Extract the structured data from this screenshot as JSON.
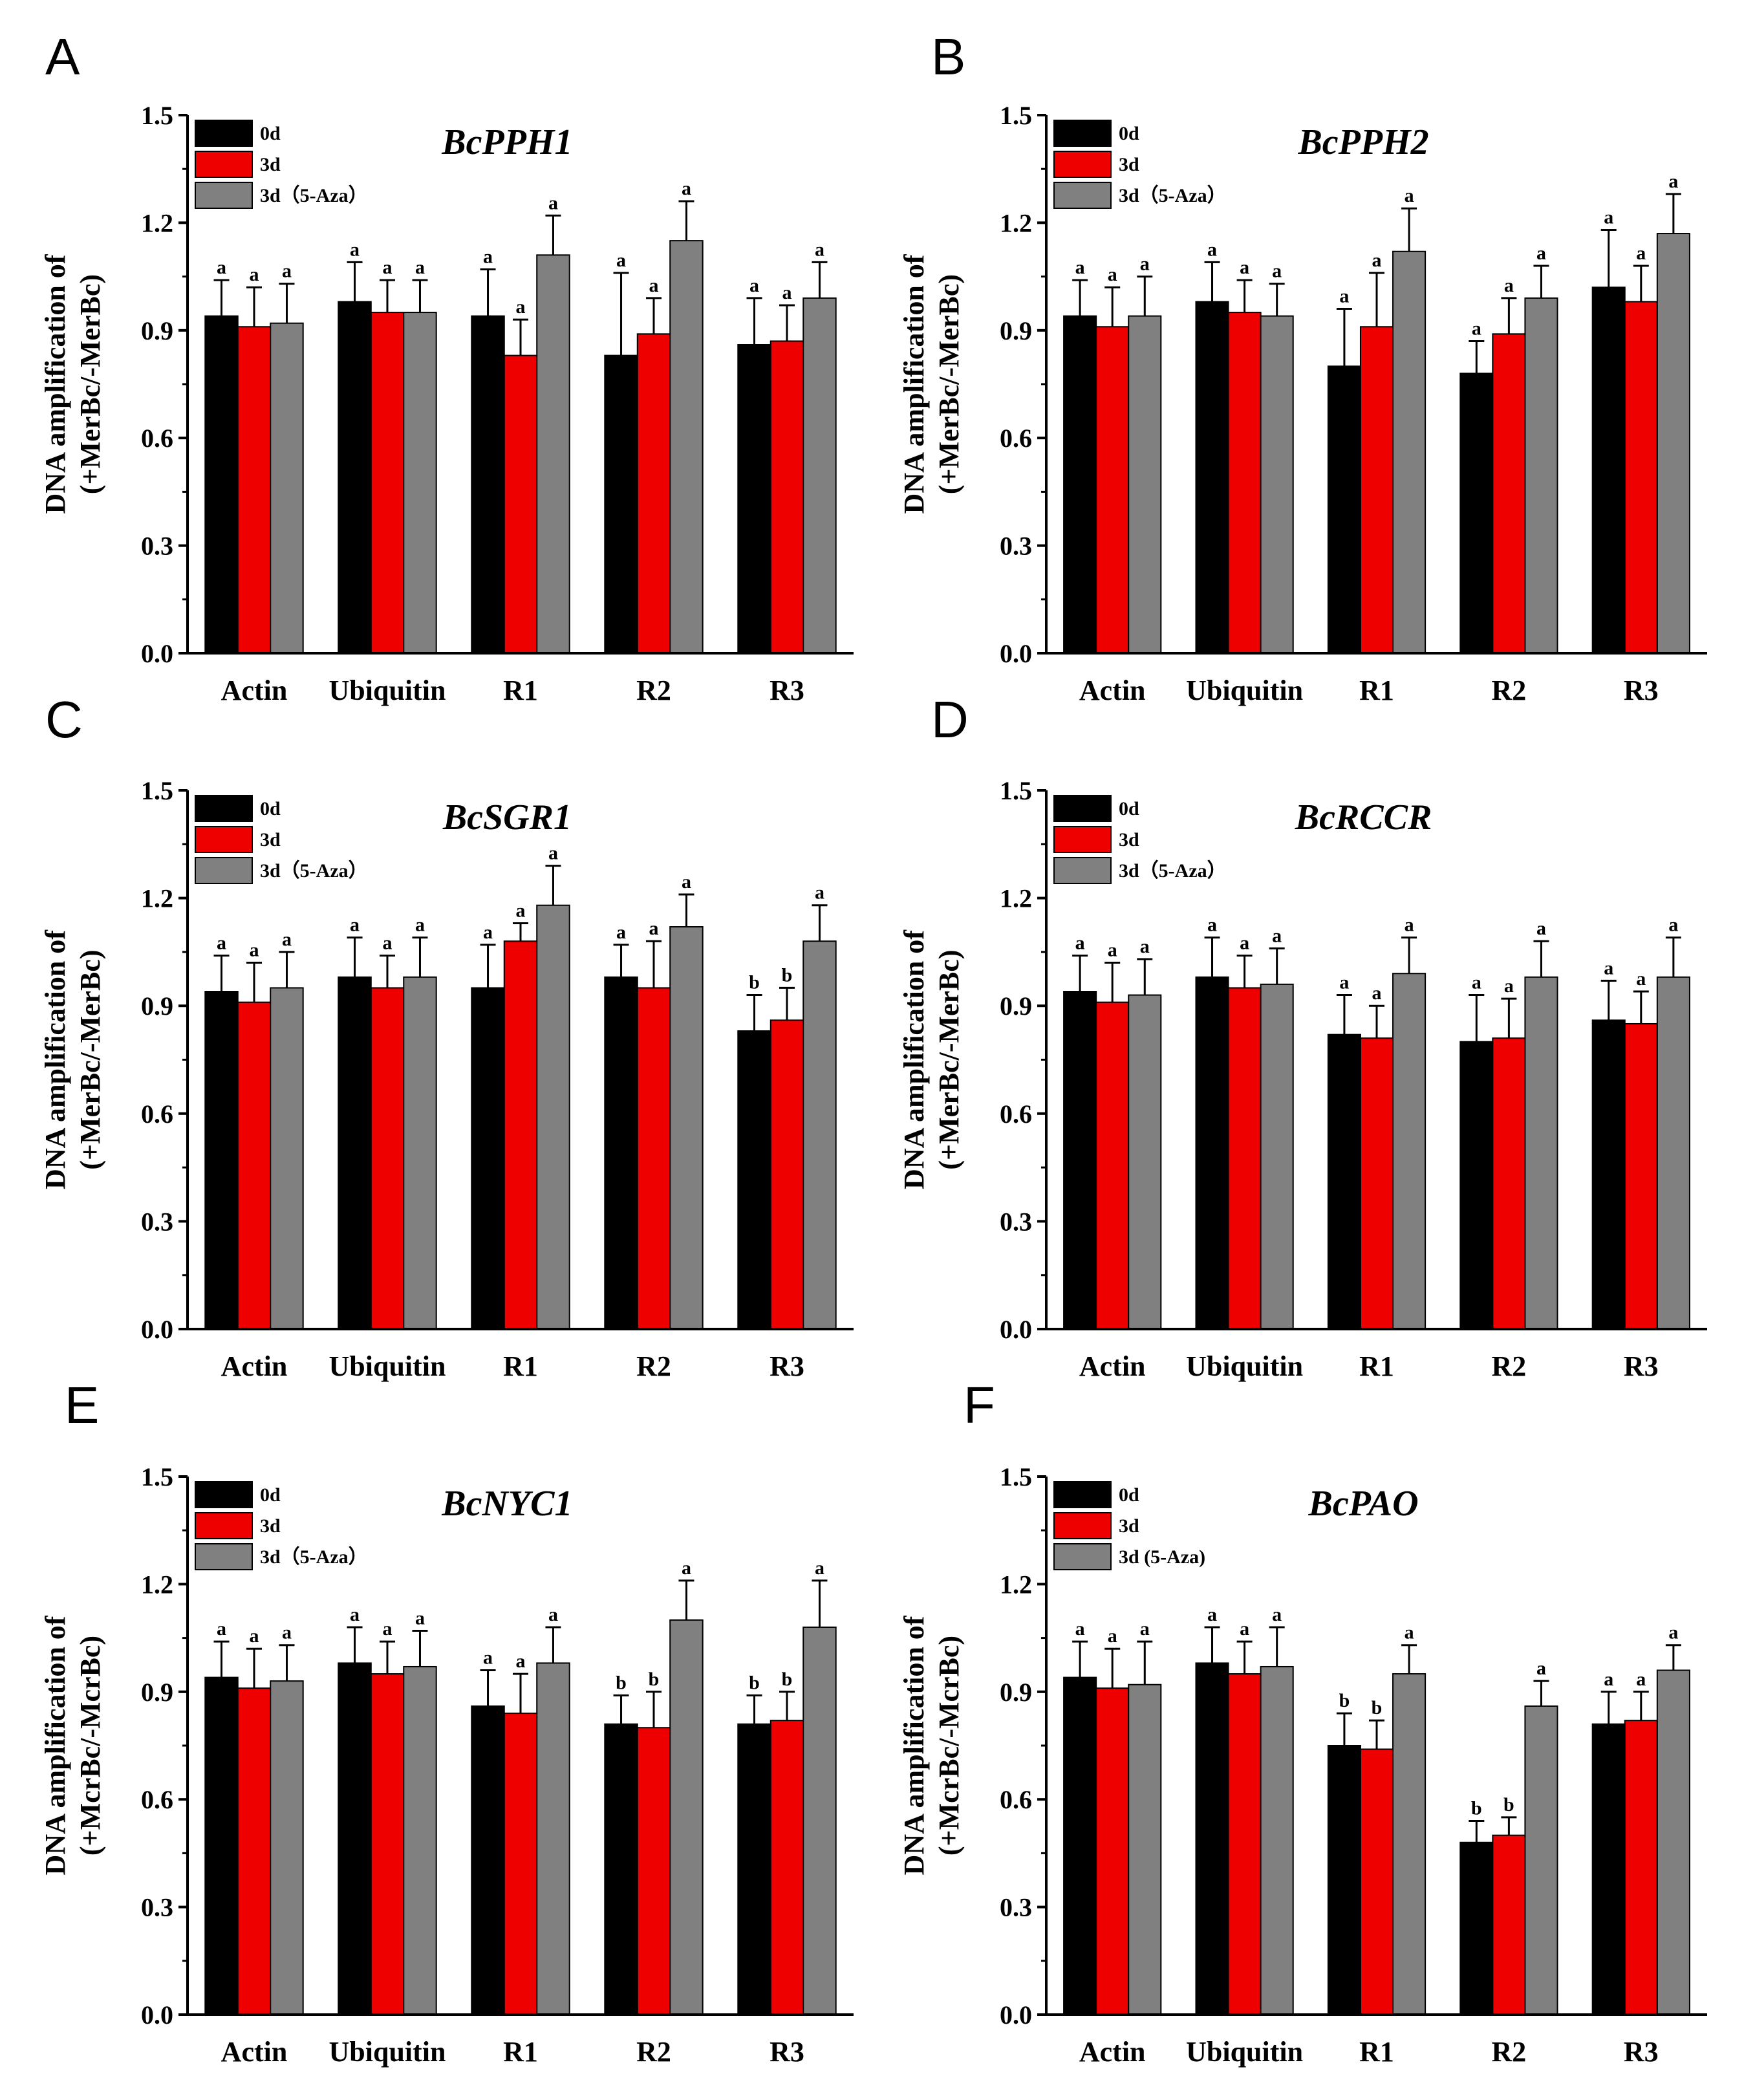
{
  "chart_data": [
    {
      "panel": "A",
      "type": "bar",
      "title": "BcPPH1",
      "ylabel_line1": "DNA amplification of",
      "ylabel_line2": "(+MerBc/-MerBc)",
      "ylim": [
        0,
        1.5
      ],
      "yticks": [
        "0.0",
        "0.3",
        "0.6",
        "0.9",
        "1.2",
        "1.5"
      ],
      "categories": [
        "Actin",
        "Ubiquitin",
        "R1",
        "R2",
        "R3"
      ],
      "legend": [
        "0d",
        "3d",
        "3d（5-Aza）"
      ],
      "series": [
        {
          "name": "0d",
          "color": "#000000",
          "values": [
            0.94,
            0.98,
            0.94,
            0.83,
            0.86
          ],
          "errors": [
            0.1,
            0.11,
            0.13,
            0.23,
            0.13
          ],
          "labels": [
            "a",
            "a",
            "a",
            "a",
            "a"
          ]
        },
        {
          "name": "3d",
          "color": "#ee0000",
          "values": [
            0.91,
            0.95,
            0.83,
            0.89,
            0.87
          ],
          "errors": [
            0.11,
            0.09,
            0.1,
            0.1,
            0.1
          ],
          "labels": [
            "a",
            "a",
            "a",
            "a",
            "a"
          ]
        },
        {
          "name": "3d（5-Aza）",
          "color": "#808080",
          "values": [
            0.92,
            0.95,
            1.11,
            1.15,
            0.99
          ],
          "errors": [
            0.11,
            0.09,
            0.11,
            0.11,
            0.1
          ],
          "labels": [
            "a",
            "a",
            "a",
            "a",
            "a"
          ]
        }
      ]
    },
    {
      "panel": "B",
      "type": "bar",
      "title": "BcPPH2",
      "ylabel_line1": "DNA amplification of",
      "ylabel_line2": "(+MerBc/-MerBc)",
      "ylim": [
        0,
        1.5
      ],
      "yticks": [
        "0.0",
        "0.3",
        "0.6",
        "0.9",
        "1.2",
        "1.5"
      ],
      "categories": [
        "Actin",
        "Ubiquitin",
        "R1",
        "R2",
        "R3"
      ],
      "legend": [
        "0d",
        "3d",
        "3d（5-Aza）"
      ],
      "series": [
        {
          "name": "0d",
          "color": "#000000",
          "values": [
            0.94,
            0.98,
            0.8,
            0.78,
            1.02
          ],
          "errors": [
            0.1,
            0.11,
            0.16,
            0.09,
            0.16
          ],
          "labels": [
            "a",
            "a",
            "a",
            "a",
            "a"
          ]
        },
        {
          "name": "3d",
          "color": "#ee0000",
          "values": [
            0.91,
            0.95,
            0.91,
            0.89,
            0.98
          ],
          "errors": [
            0.11,
            0.09,
            0.15,
            0.1,
            0.1
          ],
          "labels": [
            "a",
            "a",
            "a",
            "a",
            "a"
          ]
        },
        {
          "name": "3d（5-Aza）",
          "color": "#808080",
          "values": [
            0.94,
            0.94,
            1.12,
            0.99,
            1.17
          ],
          "errors": [
            0.11,
            0.09,
            0.12,
            0.09,
            0.11
          ],
          "labels": [
            "a",
            "a",
            "a",
            "a",
            "a"
          ]
        }
      ]
    },
    {
      "panel": "C",
      "type": "bar",
      "title": "BcSGR1",
      "ylabel_line1": "DNA amplification of",
      "ylabel_line2": "(+MerBc/-MerBc)",
      "ylim": [
        0,
        1.5
      ],
      "yticks": [
        "0.0",
        "0.3",
        "0.6",
        "0.9",
        "1.2",
        "1.5"
      ],
      "categories": [
        "Actin",
        "Ubiquitin",
        "R1",
        "R2",
        "R3"
      ],
      "legend": [
        "0d",
        "3d",
        "3d（5-Aza）"
      ],
      "series": [
        {
          "name": "0d",
          "color": "#000000",
          "values": [
            0.94,
            0.98,
            0.95,
            0.98,
            0.83
          ],
          "errors": [
            0.1,
            0.11,
            0.12,
            0.09,
            0.1
          ],
          "labels": [
            "a",
            "a",
            "a",
            "a",
            "b"
          ]
        },
        {
          "name": "3d",
          "color": "#ee0000",
          "values": [
            0.91,
            0.95,
            1.08,
            0.95,
            0.86
          ],
          "errors": [
            0.11,
            0.09,
            0.05,
            0.13,
            0.09
          ],
          "labels": [
            "a",
            "a",
            "a",
            "a",
            "b"
          ]
        },
        {
          "name": "3d（5-Aza）",
          "color": "#808080",
          "values": [
            0.95,
            0.98,
            1.18,
            1.12,
            1.08
          ],
          "errors": [
            0.1,
            0.11,
            0.11,
            0.09,
            0.1
          ],
          "labels": [
            "a",
            "a",
            "a",
            "a",
            "a"
          ]
        }
      ]
    },
    {
      "panel": "D",
      "type": "bar",
      "title": "BcRCCR",
      "ylabel_line1": "DNA amplification of",
      "ylabel_line2": "(+MerBc/-MerBc)",
      "ylim": [
        0,
        1.5
      ],
      "yticks": [
        "0.0",
        "0.3",
        "0.6",
        "0.9",
        "1.2",
        "1.5"
      ],
      "categories": [
        "Actin",
        "Ubiquitin",
        "R1",
        "R2",
        "R3"
      ],
      "legend": [
        "0d",
        "3d",
        "3d（5-Aza）"
      ],
      "series": [
        {
          "name": "0d",
          "color": "#000000",
          "values": [
            0.94,
            0.98,
            0.82,
            0.8,
            0.86
          ],
          "errors": [
            0.1,
            0.11,
            0.11,
            0.13,
            0.11
          ],
          "labels": [
            "a",
            "a",
            "a",
            "a",
            "a"
          ]
        },
        {
          "name": "3d",
          "color": "#ee0000",
          "values": [
            0.91,
            0.95,
            0.81,
            0.81,
            0.85
          ],
          "errors": [
            0.11,
            0.09,
            0.09,
            0.11,
            0.09
          ],
          "labels": [
            "a",
            "a",
            "a",
            "a",
            "a"
          ]
        },
        {
          "name": "3d（5-Aza）",
          "color": "#808080",
          "values": [
            0.93,
            0.96,
            0.99,
            0.98,
            0.98
          ],
          "errors": [
            0.1,
            0.1,
            0.1,
            0.1,
            0.11
          ],
          "labels": [
            "a",
            "a",
            "a",
            "a",
            "a"
          ]
        }
      ]
    },
    {
      "panel": "E",
      "type": "bar",
      "title": "BcNYC1",
      "ylabel_line1": "DNA amplification of",
      "ylabel_line2": "(+McrBc/-McrBc)",
      "ylim": [
        0,
        1.5
      ],
      "yticks": [
        "0.0",
        "0.3",
        "0.6",
        "0.9",
        "1.2",
        "1.5"
      ],
      "categories": [
        "Actin",
        "Ubiquitin",
        "R1",
        "R2",
        "R3"
      ],
      "legend": [
        "0d",
        "3d",
        "3d（5-Aza）"
      ],
      "series": [
        {
          "name": "0d",
          "color": "#000000",
          "values": [
            0.94,
            0.98,
            0.86,
            0.81,
            0.81
          ],
          "errors": [
            0.1,
            0.1,
            0.1,
            0.08,
            0.08
          ],
          "labels": [
            "a",
            "a",
            "a",
            "b",
            "b"
          ]
        },
        {
          "name": "3d",
          "color": "#ee0000",
          "values": [
            0.91,
            0.95,
            0.84,
            0.8,
            0.82
          ],
          "errors": [
            0.11,
            0.09,
            0.11,
            0.1,
            0.08
          ],
          "labels": [
            "a",
            "a",
            "a",
            "b",
            "b"
          ]
        },
        {
          "name": "3d（5-Aza）",
          "color": "#808080",
          "values": [
            0.93,
            0.97,
            0.98,
            1.1,
            1.08
          ],
          "errors": [
            0.1,
            0.1,
            0.1,
            0.11,
            0.13
          ],
          "labels": [
            "a",
            "a",
            "a",
            "a",
            "a"
          ]
        }
      ]
    },
    {
      "panel": "F",
      "type": "bar",
      "title": "BcPAO",
      "ylabel_line1": "DNA amplification of",
      "ylabel_line2": "(+McrBc/-McrBc)",
      "ylim": [
        0,
        1.5
      ],
      "yticks": [
        "0.0",
        "0.3",
        "0.6",
        "0.9",
        "1.2",
        "1.5"
      ],
      "categories": [
        "Actin",
        "Ubiquitin",
        "R1",
        "R2",
        "R3"
      ],
      "legend": [
        "0d",
        "3d",
        "3d (5-Aza)"
      ],
      "series": [
        {
          "name": "0d",
          "color": "#000000",
          "values": [
            0.94,
            0.98,
            0.75,
            0.48,
            0.81
          ],
          "errors": [
            0.1,
            0.1,
            0.09,
            0.06,
            0.09
          ],
          "labels": [
            "a",
            "a",
            "b",
            "b",
            "a"
          ]
        },
        {
          "name": "3d",
          "color": "#ee0000",
          "values": [
            0.91,
            0.95,
            0.74,
            0.5,
            0.82
          ],
          "errors": [
            0.11,
            0.09,
            0.08,
            0.05,
            0.08
          ],
          "labels": [
            "a",
            "a",
            "b",
            "b",
            "a"
          ]
        },
        {
          "name": "3d (5-Aza)",
          "color": "#808080",
          "values": [
            0.92,
            0.97,
            0.95,
            0.86,
            0.96
          ],
          "errors": [
            0.12,
            0.11,
            0.08,
            0.07,
            0.07
          ],
          "labels": [
            "a",
            "a",
            "a",
            "a",
            "a"
          ]
        }
      ]
    }
  ]
}
